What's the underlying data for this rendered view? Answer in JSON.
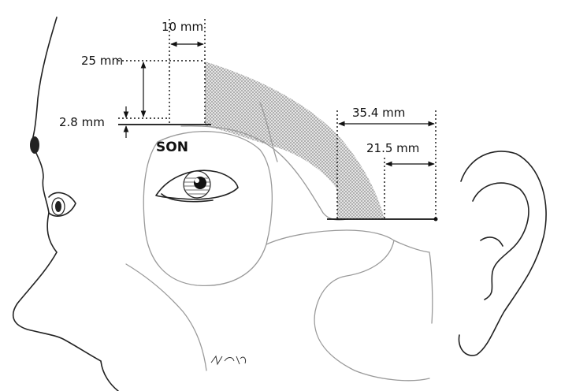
{
  "labels": {
    "dim_10": "10 mm",
    "dim_25": "25 mm",
    "dim_2_8": "2.8 mm",
    "son": "SON",
    "dim_35_4": "35.4 mm",
    "dim_21_5": "21.5 mm"
  },
  "colors": {
    "shade": "#bdbdbd",
    "line": "#111111",
    "skull": "#9a9a9a"
  }
}
